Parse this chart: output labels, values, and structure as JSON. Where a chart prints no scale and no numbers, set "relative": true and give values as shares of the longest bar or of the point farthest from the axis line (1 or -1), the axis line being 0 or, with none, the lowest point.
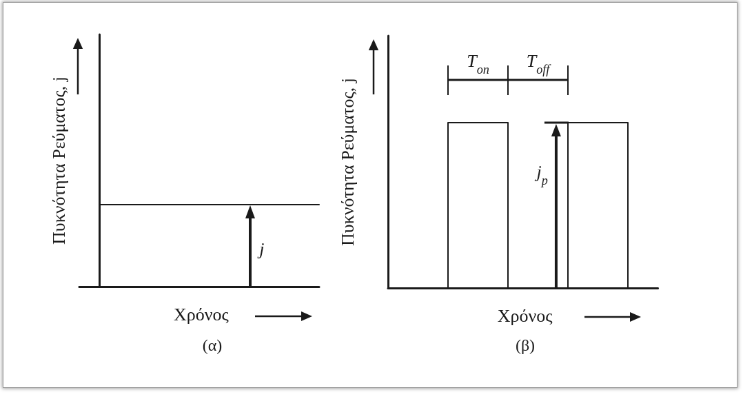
{
  "chart_data": [
    {
      "type": "step",
      "title": "(α)",
      "xlabel": "Χρόνος",
      "ylabel": "Πυκνότητα Ρεύματος, j",
      "categories": [
        null,
        null,
        null,
        null,
        null,
        null,
        null,
        null,
        null,
        null,
        null,
        null,
        null
      ],
      "values": [
        0,
        1,
        1,
        1,
        1,
        1,
        1,
        1,
        1,
        1,
        1,
        1,
        1
      ],
      "color": "#1a1a1a",
      "relative": true,
      "marker": "none",
      "annotations": [
        "j"
      ]
    },
    {
      "type": "step",
      "title": "(β)",
      "xlabel": "Χρόνος",
      "ylabel": "Πυκνότητα Ρεύματος, j",
      "categories": [
        null,
        null,
        null,
        null,
        null,
        null,
        null,
        null,
        null,
        null
      ],
      "values": [
        0,
        0,
        1,
        1,
        0,
        0,
        1,
        1,
        0,
        0
      ],
      "color": "#1a1a1a",
      "relative": true,
      "marker": "none",
      "annotations": [
        "T$_{on}$",
        "T$_{off}$",
        "j$_{p}$"
      ]
    }
  ]
}
